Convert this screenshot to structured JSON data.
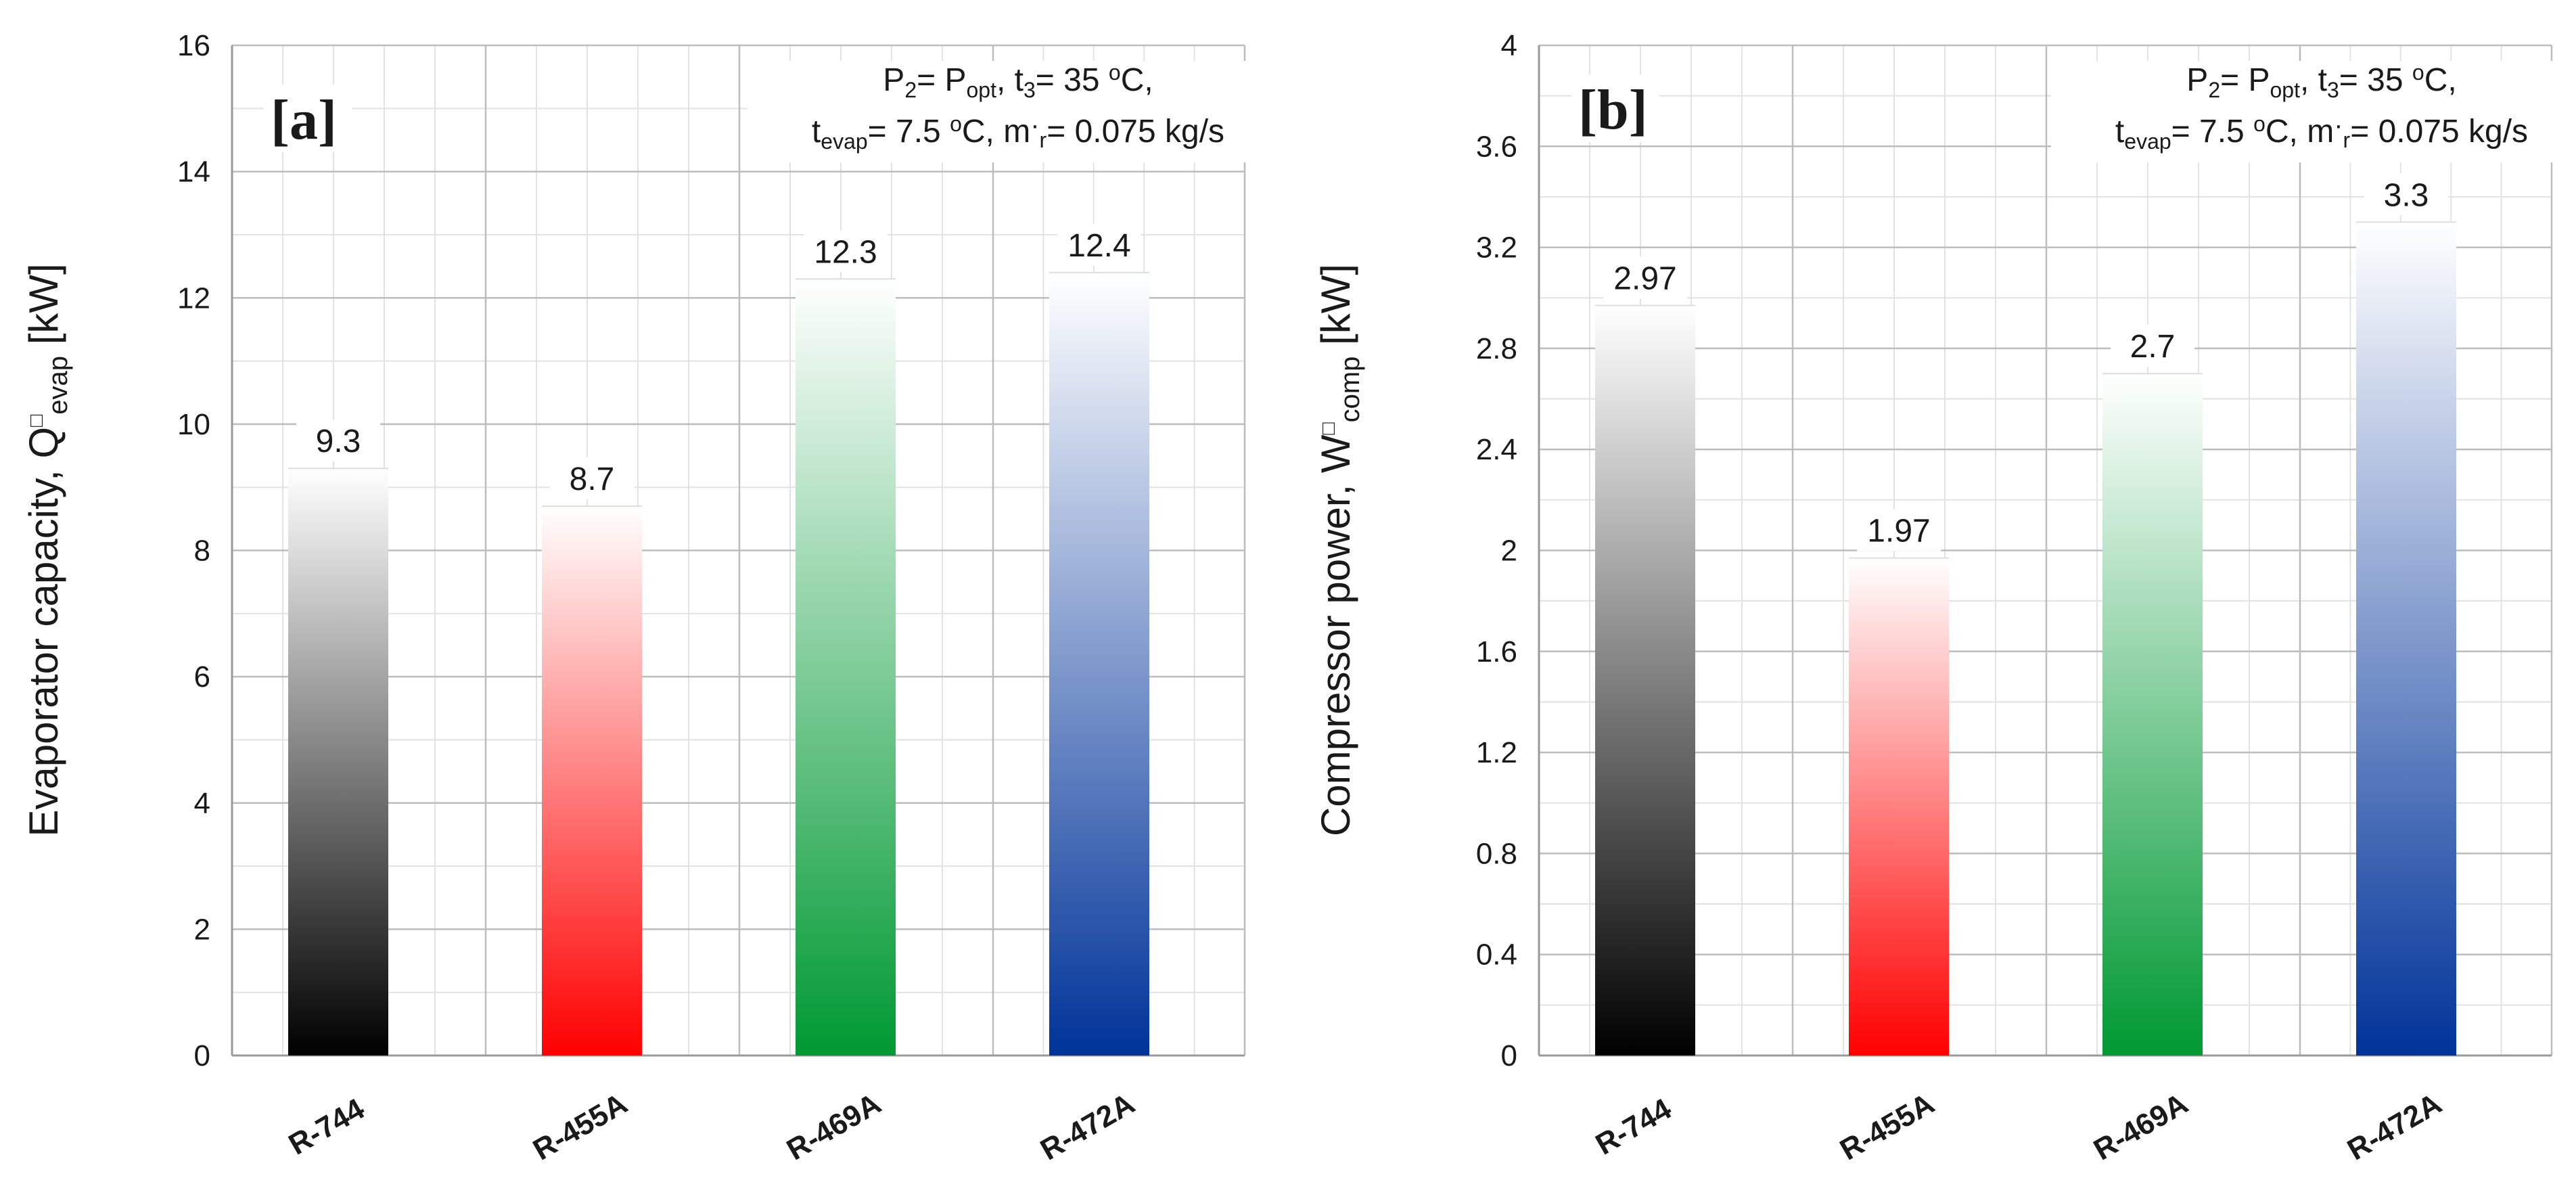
{
  "colors": {
    "grid_major": "#bdbdbd",
    "grid_minor": "#e2e2e2",
    "axis": "#9a9a9a",
    "text": "#1a1a1a"
  },
  "chart_data": [
    {
      "type": "bar",
      "panel_label": "[a]",
      "title": "",
      "annotation": {
        "line1": "P2= Popt, t3= 35 oC,",
        "line2": "tevap= 7.5 oC, m·r= 0.075 kg/s"
      },
      "ylabel": "Evaporator capacity, Q evap [kW]",
      "ylabel_parts": {
        "main": "Evaporator capacity, Q",
        "mark": "□",
        "sub": "evap",
        "unit": " [kW]"
      },
      "xlabel": "",
      "categories": [
        "R-744",
        "R-455A",
        "R-469A",
        "R-472A"
      ],
      "values": [
        9.3,
        8.7,
        12.3,
        12.4
      ],
      "labels": [
        "9.3",
        "8.7",
        "12.3",
        "12.4"
      ],
      "bar_colors": [
        "#000000",
        "#ff0000",
        "#009933",
        "#003399"
      ],
      "ylim": [
        0,
        16
      ],
      "yticks": [
        "0",
        "2",
        "4",
        "6",
        "8",
        "10",
        "12",
        "14",
        "16"
      ],
      "grid": true
    },
    {
      "type": "bar",
      "panel_label": "[b]",
      "title": "",
      "annotation": {
        "line1": "P2= Popt, t3= 35 oC,",
        "line2": "tevap= 7.5 oC, m·r= 0.075 kg/s"
      },
      "ylabel": "Compressor power, W comp [kW]",
      "ylabel_parts": {
        "main": "Compressor power, W",
        "mark": "□",
        "sub": "comp",
        "unit": " [kW]"
      },
      "xlabel": "",
      "categories": [
        "R-744",
        "R-455A",
        "R-469A",
        "R-472A"
      ],
      "values": [
        2.97,
        1.97,
        2.7,
        3.3
      ],
      "labels": [
        "2.97",
        "1.97",
        "2.7",
        "3.3"
      ],
      "bar_colors": [
        "#000000",
        "#ff0000",
        "#009933",
        "#003399"
      ],
      "ylim": [
        0,
        4
      ],
      "yticks": [
        "0",
        "0.4",
        "0.8",
        "1.2",
        "1.6",
        "2",
        "2.4",
        "2.8",
        "3.2",
        "3.6",
        "4"
      ],
      "grid": true
    }
  ]
}
